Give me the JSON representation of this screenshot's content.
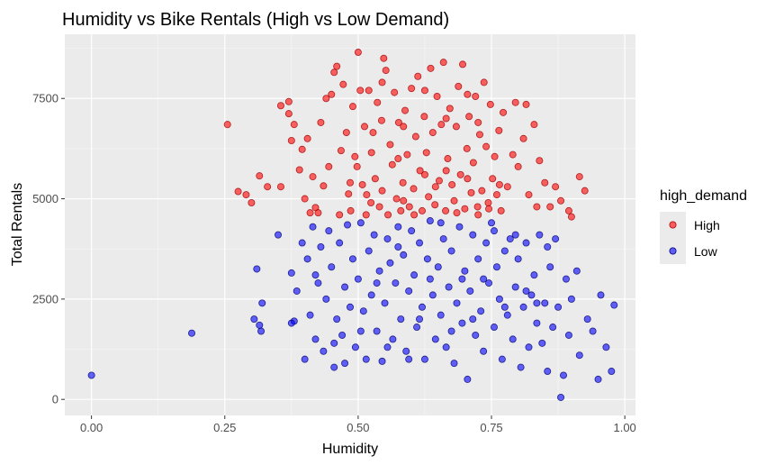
{
  "chart_data": {
    "type": "scatter",
    "title": "Humidity vs Bike Rentals (High vs Low Demand)",
    "xlabel": "Humidity",
    "ylabel": "Total Rentals",
    "xlim": [
      -0.05,
      1.02
    ],
    "ylim": [
      -400,
      9100
    ],
    "x_ticks": [
      "0.00",
      "0.25",
      "0.50",
      "0.75",
      "1.00"
    ],
    "y_ticks": [
      "0",
      "2500",
      "5000",
      "7500"
    ],
    "grid": true,
    "panel_background": "#ebebeb",
    "legend": {
      "title": "high_demand",
      "position": "right"
    },
    "series": [
      {
        "name": "High",
        "color": "#ff0000",
        "points": [
          [
            0.255,
            6850
          ],
          [
            0.275,
            5180
          ],
          [
            0.29,
            5100
          ],
          [
            0.3,
            4900
          ],
          [
            0.315,
            5570
          ],
          [
            0.33,
            5300
          ],
          [
            0.355,
            5300
          ],
          [
            0.355,
            7320
          ],
          [
            0.37,
            7420
          ],
          [
            0.37,
            7120
          ],
          [
            0.375,
            6450
          ],
          [
            0.38,
            6850
          ],
          [
            0.39,
            5720
          ],
          [
            0.395,
            6230
          ],
          [
            0.4,
            5000
          ],
          [
            0.405,
            6500
          ],
          [
            0.41,
            4650
          ],
          [
            0.415,
            5550
          ],
          [
            0.42,
            4780
          ],
          [
            0.425,
            4650
          ],
          [
            0.43,
            6900
          ],
          [
            0.435,
            5320
          ],
          [
            0.44,
            7500
          ],
          [
            0.445,
            5800
          ],
          [
            0.45,
            7600
          ],
          [
            0.455,
            8150
          ],
          [
            0.46,
            8300
          ],
          [
            0.465,
            4600
          ],
          [
            0.468,
            6200
          ],
          [
            0.472,
            7850
          ],
          [
            0.478,
            6650
          ],
          [
            0.482,
            5120
          ],
          [
            0.486,
            4700
          ],
          [
            0.49,
            7300
          ],
          [
            0.494,
            6050
          ],
          [
            0.498,
            5800
          ],
          [
            0.5,
            8650
          ],
          [
            0.504,
            7700
          ],
          [
            0.508,
            5350
          ],
          [
            0.512,
            6800
          ],
          [
            0.516,
            5100
          ],
          [
            0.52,
            7700
          ],
          [
            0.524,
            4900
          ],
          [
            0.528,
            6650
          ],
          [
            0.532,
            5500
          ],
          [
            0.536,
            7400
          ],
          [
            0.54,
            4800
          ],
          [
            0.544,
            6950
          ],
          [
            0.548,
            8500
          ],
          [
            0.552,
            8200
          ],
          [
            0.556,
            4600
          ],
          [
            0.56,
            6350
          ],
          [
            0.564,
            5850
          ],
          [
            0.568,
            7650
          ],
          [
            0.572,
            5000
          ],
          [
            0.576,
            6900
          ],
          [
            0.58,
            4700
          ],
          [
            0.584,
            5400
          ],
          [
            0.588,
            7200
          ],
          [
            0.592,
            6100
          ],
          [
            0.596,
            4800
          ],
          [
            0.6,
            7750
          ],
          [
            0.604,
            5250
          ],
          [
            0.608,
            6550
          ],
          [
            0.612,
            8050
          ],
          [
            0.616,
            5700
          ],
          [
            0.62,
            4700
          ],
          [
            0.624,
            7050
          ],
          [
            0.628,
            6150
          ],
          [
            0.632,
            5050
          ],
          [
            0.636,
            8250
          ],
          [
            0.64,
            6650
          ],
          [
            0.644,
            4850
          ],
          [
            0.648,
            7550
          ],
          [
            0.652,
            5450
          ],
          [
            0.656,
            6850
          ],
          [
            0.66,
            8400
          ],
          [
            0.664,
            4700
          ],
          [
            0.668,
            6000
          ],
          [
            0.672,
            7250
          ],
          [
            0.676,
            5350
          ],
          [
            0.68,
            4950
          ],
          [
            0.684,
            6800
          ],
          [
            0.688,
            7800
          ],
          [
            0.692,
            5600
          ],
          [
            0.696,
            8350
          ],
          [
            0.7,
            4750
          ],
          [
            0.704,
            6250
          ],
          [
            0.708,
            7050
          ],
          [
            0.712,
            5150
          ],
          [
            0.716,
            5900
          ],
          [
            0.72,
            7550
          ],
          [
            0.724,
            4800
          ],
          [
            0.728,
            6600
          ],
          [
            0.732,
            5200
          ],
          [
            0.736,
            7900
          ],
          [
            0.74,
            6300
          ],
          [
            0.744,
            4900
          ],
          [
            0.748,
            7350
          ],
          [
            0.752,
            5500
          ],
          [
            0.756,
            6050
          ],
          [
            0.76,
            5100
          ],
          [
            0.764,
            6700
          ],
          [
            0.768,
            4700
          ],
          [
            0.772,
            7150
          ],
          [
            0.78,
            5300
          ],
          [
            0.79,
            6100
          ],
          [
            0.795,
            7400
          ],
          [
            0.8,
            5800
          ],
          [
            0.81,
            6500
          ],
          [
            0.815,
            7350
          ],
          [
            0.82,
            5100
          ],
          [
            0.83,
            6850
          ],
          [
            0.835,
            4800
          ],
          [
            0.84,
            5950
          ],
          [
            0.85,
            5400
          ],
          [
            0.86,
            4800
          ],
          [
            0.87,
            5300
          ],
          [
            0.88,
            4950
          ],
          [
            0.895,
            4700
          ],
          [
            0.9,
            4550
          ],
          [
            0.915,
            5550
          ],
          [
            0.925,
            5200
          ],
          [
            0.485,
            5400
          ],
          [
            0.515,
            4600
          ],
          [
            0.525,
            6150
          ],
          [
            0.545,
            5200
          ],
          [
            0.575,
            6000
          ],
          [
            0.585,
            4950
          ],
          [
            0.605,
            4600
          ],
          [
            0.625,
            5600
          ],
          [
            0.645,
            5300
          ],
          [
            0.665,
            5700
          ],
          [
            0.685,
            4650
          ],
          [
            0.705,
            5500
          ],
          [
            0.725,
            4600
          ],
          [
            0.745,
            4750
          ],
          [
            0.765,
            5350
          ],
          [
            0.725,
            6900
          ],
          [
            0.705,
            7600
          ],
          [
            0.665,
            7000
          ],
          [
            0.625,
            7700
          ],
          [
            0.585,
            6800
          ],
          [
            0.545,
            7900
          ]
        ]
      },
      {
        "name": "Low",
        "color": "#0000ff",
        "points": [
          [
            0.0,
            600
          ],
          [
            0.188,
            1650
          ],
          [
            0.305,
            2000
          ],
          [
            0.31,
            3250
          ],
          [
            0.315,
            1850
          ],
          [
            0.318,
            1700
          ],
          [
            0.32,
            2400
          ],
          [
            0.35,
            4100
          ],
          [
            0.375,
            3150
          ],
          [
            0.38,
            1950
          ],
          [
            0.385,
            2700
          ],
          [
            0.395,
            3900
          ],
          [
            0.4,
            1000
          ],
          [
            0.405,
            3500
          ],
          [
            0.41,
            2100
          ],
          [
            0.415,
            4300
          ],
          [
            0.42,
            1500
          ],
          [
            0.425,
            2900
          ],
          [
            0.43,
            3800
          ],
          [
            0.435,
            1200
          ],
          [
            0.44,
            2500
          ],
          [
            0.445,
            4200
          ],
          [
            0.45,
            3300
          ],
          [
            0.455,
            800
          ],
          [
            0.46,
            2000
          ],
          [
            0.465,
            3900
          ],
          [
            0.47,
            1600
          ],
          [
            0.475,
            2800
          ],
          [
            0.48,
            4350
          ],
          [
            0.485,
            2300
          ],
          [
            0.49,
            3500
          ],
          [
            0.495,
            1300
          ],
          [
            0.5,
            3000
          ],
          [
            0.505,
            4400
          ],
          [
            0.51,
            2200
          ],
          [
            0.515,
            1000
          ],
          [
            0.52,
            3700
          ],
          [
            0.525,
            2600
          ],
          [
            0.53,
            4100
          ],
          [
            0.535,
            1700
          ],
          [
            0.54,
            3200
          ],
          [
            0.545,
            950
          ],
          [
            0.55,
            2400
          ],
          [
            0.555,
            4000
          ],
          [
            0.56,
            3400
          ],
          [
            0.565,
            1500
          ],
          [
            0.57,
            2900
          ],
          [
            0.575,
            4300
          ],
          [
            0.58,
            2000
          ],
          [
            0.585,
            3600
          ],
          [
            0.59,
            1200
          ],
          [
            0.595,
            2700
          ],
          [
            0.6,
            4200
          ],
          [
            0.605,
            3100
          ],
          [
            0.61,
            1800
          ],
          [
            0.615,
            3900
          ],
          [
            0.62,
            2300
          ],
          [
            0.625,
            1000
          ],
          [
            0.63,
            3500
          ],
          [
            0.635,
            4450
          ],
          [
            0.64,
            2600
          ],
          [
            0.645,
            1500
          ],
          [
            0.65,
            3300
          ],
          [
            0.655,
            2100
          ],
          [
            0.66,
            4000
          ],
          [
            0.665,
            1300
          ],
          [
            0.67,
            2800
          ],
          [
            0.675,
            3700
          ],
          [
            0.68,
            900
          ],
          [
            0.685,
            2400
          ],
          [
            0.69,
            4300
          ],
          [
            0.695,
            1900
          ],
          [
            0.7,
            3200
          ],
          [
            0.705,
            500
          ],
          [
            0.71,
            2700
          ],
          [
            0.715,
            4100
          ],
          [
            0.72,
            1600
          ],
          [
            0.725,
            3500
          ],
          [
            0.73,
            2200
          ],
          [
            0.735,
            1200
          ],
          [
            0.74,
            3900
          ],
          [
            0.745,
            2900
          ],
          [
            0.75,
            4400
          ],
          [
            0.755,
            1800
          ],
          [
            0.76,
            3300
          ],
          [
            0.765,
            2500
          ],
          [
            0.77,
            1000
          ],
          [
            0.775,
            3700
          ],
          [
            0.78,
            2100
          ],
          [
            0.785,
            4000
          ],
          [
            0.79,
            1500
          ],
          [
            0.795,
            2800
          ],
          [
            0.8,
            3500
          ],
          [
            0.805,
            800
          ],
          [
            0.81,
            2300
          ],
          [
            0.815,
            3900
          ],
          [
            0.82,
            1300
          ],
          [
            0.825,
            2600
          ],
          [
            0.83,
            3100
          ],
          [
            0.835,
            1900
          ],
          [
            0.84,
            4100
          ],
          [
            0.845,
            1400
          ],
          [
            0.85,
            2400
          ],
          [
            0.855,
            700
          ],
          [
            0.86,
            3300
          ],
          [
            0.865,
            1800
          ],
          [
            0.87,
            4000
          ],
          [
            0.875,
            2300
          ],
          [
            0.88,
            50
          ],
          [
            0.885,
            600
          ],
          [
            0.89,
            3000
          ],
          [
            0.895,
            1600
          ],
          [
            0.9,
            2500
          ],
          [
            0.91,
            3200
          ],
          [
            0.915,
            1100
          ],
          [
            0.93,
            2000
          ],
          [
            0.94,
            1700
          ],
          [
            0.95,
            500
          ],
          [
            0.955,
            2600
          ],
          [
            0.965,
            1300
          ],
          [
            0.975,
            700
          ],
          [
            0.98,
            2350
          ],
          [
            0.375,
            1900
          ],
          [
            0.42,
            3100
          ],
          [
            0.455,
            1400
          ],
          [
            0.475,
            900
          ],
          [
            0.505,
            1700
          ],
          [
            0.535,
            2900
          ],
          [
            0.555,
            1300
          ],
          [
            0.575,
            3800
          ],
          [
            0.595,
            1000
          ],
          [
            0.615,
            2000
          ],
          [
            0.635,
            3000
          ],
          [
            0.655,
            4400
          ],
          [
            0.675,
            1700
          ],
          [
            0.695,
            3000
          ],
          [
            0.715,
            2000
          ],
          [
            0.735,
            3000
          ],
          [
            0.755,
            4200
          ],
          [
            0.775,
            2300
          ],
          [
            0.795,
            4100
          ],
          [
            0.815,
            2700
          ],
          [
            0.835,
            2400
          ],
          [
            0.855,
            3800
          ]
        ]
      }
    ]
  }
}
